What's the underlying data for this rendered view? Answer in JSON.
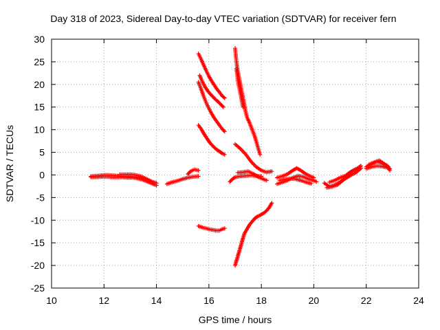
{
  "chart_data": {
    "type": "scatter",
    "title": "Day 318 of 2023, Sidereal Day-to-day VTEC variation (SDTVAR) for receiver fern",
    "xlabel": "GPS time / hours",
    "ylabel": "SDTVAR / TECUs",
    "xlim": [
      10,
      24
    ],
    "ylim": [
      -25,
      30
    ],
    "xticks": [
      10,
      12,
      14,
      16,
      18,
      20,
      22,
      24
    ],
    "yticks": [
      -25,
      -20,
      -15,
      -10,
      -5,
      0,
      5,
      10,
      15,
      20,
      25,
      30
    ],
    "grid": true,
    "marker": "+",
    "color": "#ff0000",
    "series": [
      {
        "points": [
          [
            11.5,
            -0.3
          ],
          [
            11.7,
            -0.2
          ],
          [
            11.9,
            -0.1
          ],
          [
            12.1,
            0.0
          ],
          [
            12.3,
            -0.1
          ],
          [
            12.5,
            -0.2
          ],
          [
            12.7,
            -0.3
          ],
          [
            12.9,
            -0.3
          ],
          [
            13.1,
            -0.4
          ],
          [
            13.3,
            -0.5
          ],
          [
            13.5,
            -0.8
          ],
          [
            13.7,
            -1.2
          ],
          [
            13.9,
            -1.6
          ],
          [
            14.0,
            -1.8
          ]
        ]
      },
      {
        "points": [
          [
            11.5,
            -0.5
          ],
          [
            11.7,
            -0.5
          ],
          [
            11.9,
            -0.4
          ],
          [
            12.1,
            -0.4
          ],
          [
            12.3,
            -0.5
          ],
          [
            12.5,
            -0.5
          ],
          [
            12.7,
            -0.5
          ],
          [
            12.9,
            -0.6
          ],
          [
            13.1,
            -0.6
          ],
          [
            13.3,
            -0.8
          ],
          [
            13.5,
            -1.1
          ],
          [
            13.7,
            -1.6
          ],
          [
            13.9,
            -2.1
          ],
          [
            14.0,
            -2.3
          ]
        ]
      },
      {
        "points": [
          [
            12.6,
            0.1
          ],
          [
            12.8,
            0.1
          ],
          [
            13.0,
            0.1
          ],
          [
            13.2,
            0.0
          ],
          [
            13.4,
            -0.3
          ],
          [
            13.6,
            -0.8
          ],
          [
            13.8,
            -1.4
          ]
        ]
      },
      {
        "points": [
          [
            14.4,
            -2.0
          ],
          [
            14.6,
            -1.6
          ],
          [
            14.8,
            -1.3
          ],
          [
            15.0,
            -0.9
          ],
          [
            15.2,
            -0.6
          ],
          [
            15.4,
            -0.4
          ],
          [
            15.6,
            -0.3
          ]
        ]
      },
      {
        "points": [
          [
            15.2,
            0.2
          ],
          [
            15.3,
            0.8
          ],
          [
            15.45,
            1.2
          ],
          [
            15.6,
            1.0
          ]
        ]
      },
      {
        "points": [
          [
            15.6,
            26.8
          ],
          [
            15.7,
            25.6
          ],
          [
            15.8,
            24.3
          ],
          [
            15.9,
            23.0
          ],
          [
            16.0,
            21.8
          ],
          [
            16.1,
            20.8
          ],
          [
            16.2,
            19.9
          ],
          [
            16.3,
            19.0
          ],
          [
            16.4,
            18.3
          ],
          [
            16.5,
            17.5
          ],
          [
            16.6,
            17.0
          ]
        ]
      },
      {
        "points": [
          [
            15.65,
            22.0
          ],
          [
            15.75,
            20.6
          ],
          [
            15.85,
            19.5
          ],
          [
            15.95,
            18.6
          ],
          [
            16.05,
            17.9
          ],
          [
            16.15,
            17.3
          ],
          [
            16.25,
            16.7
          ],
          [
            16.35,
            16.2
          ],
          [
            16.45,
            15.6
          ],
          [
            16.55,
            15.0
          ]
        ]
      },
      {
        "points": [
          [
            15.6,
            20.5
          ],
          [
            15.7,
            19.0
          ],
          [
            15.8,
            17.4
          ],
          [
            15.9,
            15.9
          ],
          [
            16.0,
            14.7
          ],
          [
            16.1,
            13.6
          ],
          [
            16.2,
            12.6
          ],
          [
            16.3,
            11.8
          ],
          [
            16.4,
            11.0
          ],
          [
            16.5,
            10.2
          ],
          [
            16.6,
            9.6
          ]
        ]
      },
      {
        "points": [
          [
            15.6,
            11.0
          ],
          [
            15.7,
            10.2
          ],
          [
            15.8,
            9.2
          ],
          [
            15.9,
            8.3
          ],
          [
            16.0,
            7.4
          ],
          [
            16.1,
            6.7
          ],
          [
            16.2,
            6.1
          ],
          [
            16.3,
            5.6
          ],
          [
            16.4,
            5.2
          ],
          [
            16.5,
            4.8
          ],
          [
            16.6,
            4.5
          ]
        ]
      },
      {
        "points": [
          [
            15.6,
            -11.3
          ],
          [
            15.7,
            -11.5
          ],
          [
            15.8,
            -11.7
          ],
          [
            15.9,
            -11.8
          ],
          [
            16.0,
            -12.0
          ],
          [
            16.1,
            -12.1
          ],
          [
            16.2,
            -12.2
          ],
          [
            16.3,
            -12.3
          ],
          [
            16.4,
            -12.3
          ],
          [
            16.5,
            -12.0
          ],
          [
            16.6,
            -11.8
          ]
        ]
      },
      {
        "points": [
          [
            17.0,
            28.0
          ],
          [
            17.05,
            25.0
          ],
          [
            17.1,
            23.0
          ],
          [
            17.15,
            21.5
          ],
          [
            17.2,
            20.0
          ],
          [
            17.25,
            18.5
          ],
          [
            17.3,
            17.0
          ],
          [
            17.35,
            15.5
          ],
          [
            17.4,
            14.0
          ],
          [
            17.45,
            12.8
          ],
          [
            17.55,
            11.5
          ],
          [
            17.65,
            10.0
          ],
          [
            17.75,
            8.5
          ],
          [
            17.85,
            6.5
          ],
          [
            17.95,
            4.5
          ]
        ]
      },
      {
        "points": [
          [
            17.05,
            23.5
          ],
          [
            17.1,
            21.0
          ],
          [
            17.15,
            19.5
          ],
          [
            17.2,
            18.0
          ],
          [
            17.25,
            16.5
          ],
          [
            17.3,
            15.0
          ]
        ]
      },
      {
        "points": [
          [
            16.8,
            -1.5
          ],
          [
            16.9,
            -0.9
          ],
          [
            17.0,
            -0.5
          ],
          [
            17.2,
            -0.3
          ],
          [
            17.4,
            -0.2
          ],
          [
            17.6,
            -0.1
          ],
          [
            17.8,
            -0.2
          ],
          [
            18.0,
            -0.3
          ]
        ]
      },
      {
        "points": [
          [
            17.0,
            6.8
          ],
          [
            17.2,
            5.8
          ],
          [
            17.4,
            4.6
          ],
          [
            17.6,
            3.0
          ],
          [
            17.8,
            1.8
          ],
          [
            18.0,
            1.0
          ],
          [
            18.2,
            0.6
          ],
          [
            18.4,
            0.8
          ]
        ]
      },
      {
        "points": [
          [
            17.1,
            0.5
          ],
          [
            17.3,
            0.6
          ],
          [
            17.5,
            0.8
          ],
          [
            17.7,
            0.2
          ],
          [
            17.9,
            -0.5
          ],
          [
            18.1,
            -1.0
          ],
          [
            18.2,
            -1.2
          ]
        ]
      },
      {
        "points": [
          [
            17.0,
            -20.0
          ],
          [
            17.05,
            -19.0
          ],
          [
            17.1,
            -18.0
          ],
          [
            17.15,
            -17.0
          ],
          [
            17.2,
            -16.0
          ],
          [
            17.25,
            -15.0
          ],
          [
            17.3,
            -14.0
          ],
          [
            17.35,
            -13.0
          ],
          [
            17.45,
            -12.0
          ],
          [
            17.55,
            -11.0
          ],
          [
            17.65,
            -10.3
          ],
          [
            17.75,
            -9.6
          ],
          [
            17.85,
            -9.2
          ],
          [
            17.95,
            -8.9
          ],
          [
            18.1,
            -8.4
          ],
          [
            18.2,
            -7.9
          ],
          [
            18.3,
            -7.2
          ],
          [
            18.4,
            -6.2
          ]
        ]
      },
      {
        "points": [
          [
            18.6,
            -2.0
          ],
          [
            18.8,
            -1.6
          ],
          [
            19.0,
            -1.2
          ],
          [
            19.2,
            -0.6
          ],
          [
            19.4,
            -0.2
          ],
          [
            19.6,
            -0.4
          ],
          [
            19.8,
            -0.9
          ],
          [
            20.0,
            -1.2
          ],
          [
            20.1,
            -1.5
          ]
        ]
      },
      {
        "points": [
          [
            18.6,
            -0.6
          ],
          [
            18.8,
            -0.3
          ],
          [
            19.0,
            0.2
          ],
          [
            19.2,
            1.0
          ],
          [
            19.35,
            1.5
          ],
          [
            19.5,
            1.0
          ],
          [
            19.7,
            0.2
          ],
          [
            19.9,
            -0.4
          ],
          [
            20.0,
            -0.6
          ]
        ]
      },
      {
        "points": [
          [
            18.7,
            -1.2
          ],
          [
            18.9,
            -1.0
          ],
          [
            19.1,
            -0.8
          ],
          [
            19.3,
            -0.9
          ],
          [
            19.5,
            -1.2
          ],
          [
            19.7,
            -1.6
          ],
          [
            19.9,
            -1.9
          ]
        ]
      },
      {
        "points": [
          [
            20.4,
            -1.8
          ],
          [
            20.6,
            -2.6
          ],
          [
            20.8,
            -2.2
          ],
          [
            21.0,
            -1.6
          ],
          [
            21.2,
            -0.8
          ],
          [
            21.4,
            -0.1
          ],
          [
            21.6,
            0.5
          ],
          [
            21.8,
            1.5
          ]
        ]
      },
      {
        "points": [
          [
            20.5,
            -2.8
          ],
          [
            20.7,
            -2.6
          ],
          [
            20.9,
            -2.2
          ],
          [
            21.1,
            -1.2
          ],
          [
            21.3,
            0.2
          ],
          [
            21.5,
            1.0
          ],
          [
            21.7,
            1.6
          ],
          [
            21.8,
            2.0
          ]
        ]
      },
      {
        "points": [
          [
            20.6,
            -1.6
          ],
          [
            20.8,
            -1.2
          ],
          [
            21.0,
            -0.6
          ],
          [
            21.2,
            -0.2
          ],
          [
            21.4,
            0.6
          ],
          [
            21.6,
            1.2
          ]
        ]
      },
      {
        "points": [
          [
            22.0,
            1.8
          ],
          [
            22.2,
            2.4
          ],
          [
            22.4,
            3.0
          ],
          [
            22.6,
            2.6
          ],
          [
            22.8,
            2.0
          ],
          [
            22.9,
            1.0
          ]
        ]
      },
      {
        "points": [
          [
            22.0,
            1.4
          ],
          [
            22.2,
            1.8
          ],
          [
            22.4,
            2.0
          ],
          [
            22.6,
            1.9
          ],
          [
            22.8,
            1.6
          ],
          [
            22.9,
            1.4
          ]
        ]
      },
      {
        "points": [
          [
            22.1,
            2.3
          ],
          [
            22.3,
            2.8
          ],
          [
            22.5,
            3.2
          ],
          [
            22.7,
            2.4
          ],
          [
            22.85,
            1.8
          ]
        ]
      }
    ]
  }
}
